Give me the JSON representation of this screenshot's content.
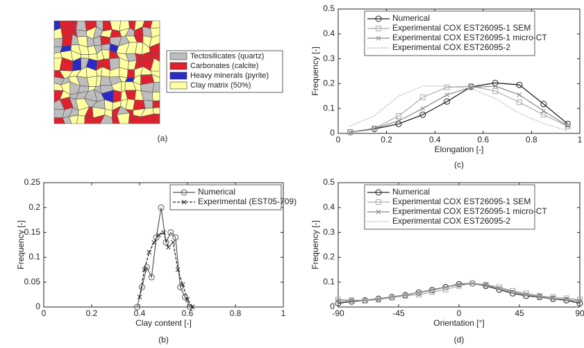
{
  "chart_data": [
    {
      "type": "image",
      "label": "(a)",
      "legend": [
        {
          "name": "Tectosilicates (quartz)",
          "color": "#bdbdbd"
        },
        {
          "name": "Carbonates (calcite)",
          "color": "#e0202e"
        },
        {
          "name": "Heavy minerals (pyrite)",
          "color": "#2a2ac8"
        },
        {
          "name": "Clay matrix (50%)",
          "color": "#ffffa0"
        }
      ]
    },
    {
      "type": "line",
      "label": "(b)",
      "xlabel": "Clay content [-]",
      "ylabel": "Frequency [-]",
      "xlim": [
        0,
        1
      ],
      "xticks": [
        0,
        0.2,
        0.4,
        0.6,
        0.8,
        1
      ],
      "ylim": [
        0,
        0.25
      ],
      "yticks": [
        0,
        0.05,
        0.1,
        0.15,
        0.2,
        0.25
      ],
      "legend": "upper right",
      "series": [
        {
          "name": "Numerical",
          "color": "#555555",
          "marker": "circle",
          "dash": "solid",
          "x": [
            0.39,
            0.41,
            0.43,
            0.45,
            0.47,
            0.49,
            0.51,
            0.53,
            0.55,
            0.57,
            0.59,
            0.61
          ],
          "values": [
            0,
            0.04,
            0.08,
            0.06,
            0.14,
            0.2,
            0.13,
            0.15,
            0.14,
            0.04,
            0.02,
            0
          ]
        },
        {
          "name": "Experimental (EST05-709)",
          "color": "#222222",
          "marker": "x",
          "dash": "dashed",
          "x": [
            0.4,
            0.42,
            0.44,
            0.46,
            0.48,
            0.5,
            0.52,
            0.54,
            0.56,
            0.58,
            0.6,
            0.62
          ],
          "values": [
            0.02,
            0.075,
            0.11,
            0.13,
            0.145,
            0.15,
            0.12,
            0.13,
            0.075,
            0.045,
            0.015,
            0
          ]
        }
      ]
    },
    {
      "type": "line",
      "label": "(c)",
      "xlabel": "Elongation [-]",
      "ylabel": "Frequency [-]",
      "xlim": [
        0,
        1
      ],
      "xticks": [
        0,
        0.2,
        0.4,
        0.6,
        0.8,
        1
      ],
      "ylim": [
        0,
        0.5
      ],
      "yticks": [
        0,
        0.1,
        0.2,
        0.3,
        0.4,
        0.5
      ],
      "legend": "upper left",
      "x": [
        0.05,
        0.15,
        0.25,
        0.35,
        0.45,
        0.55,
        0.65,
        0.75,
        0.85,
        0.95
      ],
      "series": [
        {
          "name": "Numerical",
          "color": "#222222",
          "marker": "circle",
          "dash": "solid",
          "values": [
            0.005,
            0.018,
            0.038,
            0.075,
            0.128,
            0.187,
            0.203,
            0.195,
            0.118,
            0.038
          ]
        },
        {
          "name": "Experimental COX EST26095-1 SEM",
          "color": "#aaaaaa",
          "marker": "square",
          "dash": "solid",
          "values": [
            0.005,
            0.02,
            0.07,
            0.145,
            0.185,
            0.19,
            0.17,
            0.125,
            0.075,
            0.028
          ]
        },
        {
          "name": "Experimental COX EST26095-1 micro-CT",
          "color": "#888888",
          "marker": "x",
          "dash": "solid",
          "values": [
            0.005,
            0.02,
            0.05,
            0.1,
            0.155,
            0.185,
            0.19,
            0.155,
            0.09,
            0.03
          ]
        },
        {
          "name": "Experimental COX EST26095-2",
          "color": "#999999",
          "marker": "none",
          "dash": "dotted",
          "values": [
            0.03,
            0.07,
            0.15,
            0.19,
            0.19,
            0.18,
            0.14,
            0.08,
            0.04,
            0.01
          ]
        }
      ]
    },
    {
      "type": "line",
      "label": "(d)",
      "xlabel": "Orientation [°]",
      "ylabel": "Frequency [-]",
      "xlim": [
        -90,
        90
      ],
      "xticks": [
        -90,
        -45,
        0,
        45,
        90
      ],
      "ylim": [
        0,
        0.5
      ],
      "yticks": [
        0,
        0.1,
        0.2,
        0.3,
        0.4,
        0.5
      ],
      "legend": "upper left",
      "x": [
        -90,
        -80,
        -70,
        -60,
        -50,
        -40,
        -30,
        -20,
        -10,
        0,
        10,
        20,
        30,
        40,
        50,
        60,
        70,
        80,
        90
      ],
      "series": [
        {
          "name": "Numerical",
          "color": "#222222",
          "marker": "circle",
          "dash": "solid",
          "values": [
            0.015,
            0.022,
            0.027,
            0.033,
            0.04,
            0.048,
            0.058,
            0.068,
            0.08,
            0.092,
            0.095,
            0.085,
            0.07,
            0.055,
            0.045,
            0.04,
            0.033,
            0.027,
            0.015
          ]
        },
        {
          "name": "Experimental COX EST26095-1 SEM",
          "color": "#aaaaaa",
          "marker": "square",
          "dash": "solid",
          "values": [
            0.03,
            0.028,
            0.025,
            0.03,
            0.038,
            0.045,
            0.05,
            0.06,
            0.07,
            0.085,
            0.095,
            0.09,
            0.08,
            0.065,
            0.055,
            0.045,
            0.04,
            0.035,
            0.03
          ]
        },
        {
          "name": "Experimental COX EST26095-1 micro-CT",
          "color": "#888888",
          "marker": "x",
          "dash": "solid",
          "values": [
            0.025,
            0.025,
            0.028,
            0.032,
            0.04,
            0.048,
            0.058,
            0.07,
            0.08,
            0.09,
            0.095,
            0.088,
            0.075,
            0.062,
            0.05,
            0.042,
            0.035,
            0.03,
            0.025
          ]
        },
        {
          "name": "Experimental COX EST26095-2",
          "color": "#999999",
          "marker": "none",
          "dash": "dotted",
          "values": [
            0.02,
            0.024,
            0.03,
            0.035,
            0.042,
            0.05,
            0.06,
            0.07,
            0.082,
            0.09,
            0.093,
            0.086,
            0.072,
            0.058,
            0.048,
            0.04,
            0.034,
            0.028,
            0.02
          ]
        }
      ]
    }
  ]
}
